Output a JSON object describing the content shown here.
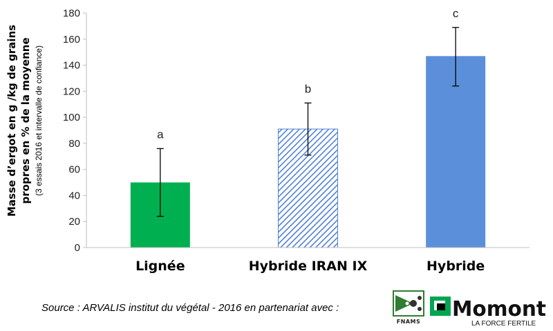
{
  "chart_data": {
    "type": "bar",
    "categories": [
      "Lignée",
      "Hybride IRAN IX",
      "Hybride"
    ],
    "values": [
      50,
      91,
      147
    ],
    "error_low": [
      24,
      71,
      124
    ],
    "error_high": [
      76,
      111,
      169
    ],
    "significance": [
      "a",
      "b",
      "c"
    ],
    "colors": [
      "#00b050",
      "#4f81d6",
      "#5b8fd9"
    ],
    "patterns": [
      "solid",
      "hatched",
      "solid"
    ],
    "ylabel_lines": [
      "Masse d’ergot en g /kg de grains",
      "propres en % de la moyenne",
      "(3 essais 2016 et intervalle de confiance)"
    ],
    "xlabel": "",
    "ylim": [
      0,
      180
    ],
    "yticks": [
      0,
      20,
      40,
      60,
      80,
      100,
      120,
      140,
      160,
      180
    ],
    "grid": false,
    "legend": "none"
  },
  "footer": {
    "source": "Source : ARVALIS institut du végétal  - 2016 en partenariat avec :",
    "logo_fnams": "FNAMS",
    "logo_momont": "Momont",
    "logo_momont_tagline": "LA FORCE FERTILE"
  }
}
